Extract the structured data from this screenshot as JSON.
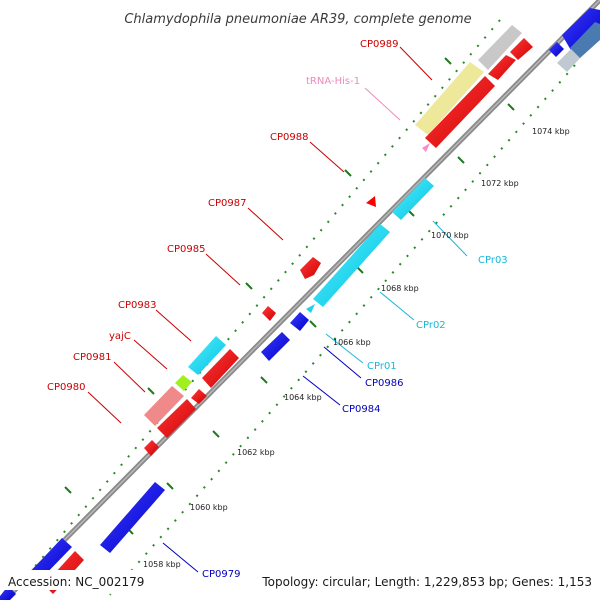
{
  "title": "Chlamydophila pneumoniae AR39, complete genome",
  "footer": {
    "accession": "Accession: NC_002179",
    "summary": "Topology: circular; Length: 1,229,853 bp; Genes: 1,153"
  },
  "colors": {
    "forward_gene": "#ff0000",
    "reverse_gene": "#0000ee",
    "promoter": "#00d8f0",
    "trna": "#ff99cc",
    "label_forward": "#cc0000",
    "label_reverse": "#0000bb",
    "label_promoter": "#18b8d8",
    "label_trna": "#ee88bb",
    "backbone": "#808080",
    "tick_major": "#1f7a1f",
    "tick_minor": "#33aa33"
  },
  "ruler_ticks": [
    "1058 kbp",
    "1060 kbp",
    "1062 kbp",
    "1064 kbp",
    "1066 kbp",
    "1068 kbp",
    "1070 kbp",
    "1072 kbp",
    "1074 kbp"
  ],
  "feature_labels": [
    {
      "text": "CP0989",
      "kind": "forward"
    },
    {
      "text": "tRNA-His-1",
      "kind": "trna"
    },
    {
      "text": "CP0988",
      "kind": "forward"
    },
    {
      "text": "CP0987",
      "kind": "forward"
    },
    {
      "text": "CP0985",
      "kind": "forward"
    },
    {
      "text": "CP0983",
      "kind": "forward"
    },
    {
      "text": "yajC",
      "kind": "forward"
    },
    {
      "text": "CP0981",
      "kind": "forward"
    },
    {
      "text": "CP0980",
      "kind": "forward"
    },
    {
      "text": "CPr03",
      "kind": "promoter"
    },
    {
      "text": "CPr02",
      "kind": "promoter"
    },
    {
      "text": "CPr01",
      "kind": "promoter"
    },
    {
      "text": "CP0986",
      "kind": "reverse"
    },
    {
      "text": "CP0984",
      "kind": "reverse"
    },
    {
      "text": "CP0979",
      "kind": "reverse"
    }
  ]
}
